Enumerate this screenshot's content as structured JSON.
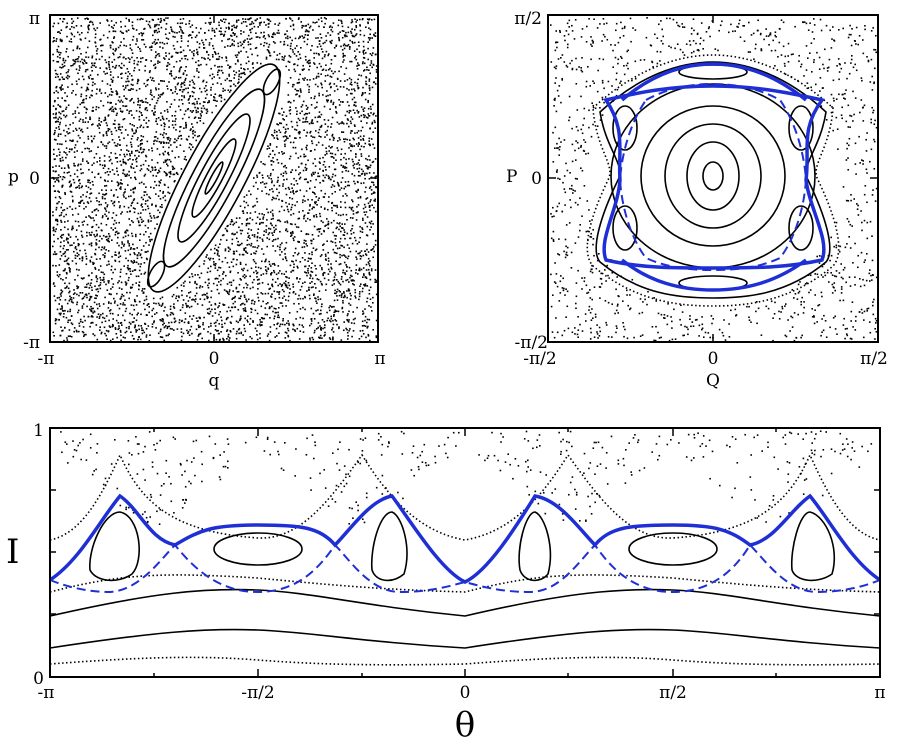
{
  "chart_data": [
    {
      "type": "scatter",
      "panel": "top-left",
      "xlabel": "q",
      "ylabel": "p",
      "xlim": [
        -3.14159,
        3.14159
      ],
      "ylim": [
        -3.14159,
        3.14159
      ],
      "xticks": [
        "-π",
        "0",
        "π"
      ],
      "yticks": [
        "-π",
        "0",
        "π"
      ],
      "grid": false,
      "content": "chaotic sea of scattered points with a tilted elliptical island of nested invariant curves centered near (0,0)",
      "island_tilt_deg": 62,
      "nested_curves": 5
    },
    {
      "type": "scatter",
      "panel": "top-right",
      "xlabel": "Q",
      "ylabel": "P",
      "xlim": [
        -1.5708,
        1.5708
      ],
      "ylim": [
        -1.5708,
        1.5708
      ],
      "xticks": [
        "-π/2",
        "0",
        "π/2"
      ],
      "yticks": [
        "-π/2",
        "0",
        "π/2"
      ],
      "grid": false,
      "content": "central elliptic island with nested curves, six secondary islands, blue solid and blue dashed separatrix curves, chaotic points outside"
    },
    {
      "type": "line",
      "panel": "bottom",
      "xlabel": "θ",
      "ylabel": "I",
      "xlim": [
        -3.14159,
        3.14159
      ],
      "ylim": [
        0,
        1
      ],
      "xticks": [
        "-π",
        "-π/2",
        "0",
        "π/2",
        "π"
      ],
      "yticks": [
        "0",
        "1"
      ],
      "grid": false,
      "resonance_islands": 6,
      "series": [
        {
          "style": "blue-solid",
          "description": "separatrix with peaks near I≈0.72 and flat tops near I≈0.61"
        },
        {
          "style": "blue-dashed",
          "description": "lower separatrix branch with minima near I≈0.34"
        }
      ]
    }
  ],
  "colors": {
    "blue": "#1f2fd6",
    "black": "#000000",
    "background": "#ffffff"
  }
}
